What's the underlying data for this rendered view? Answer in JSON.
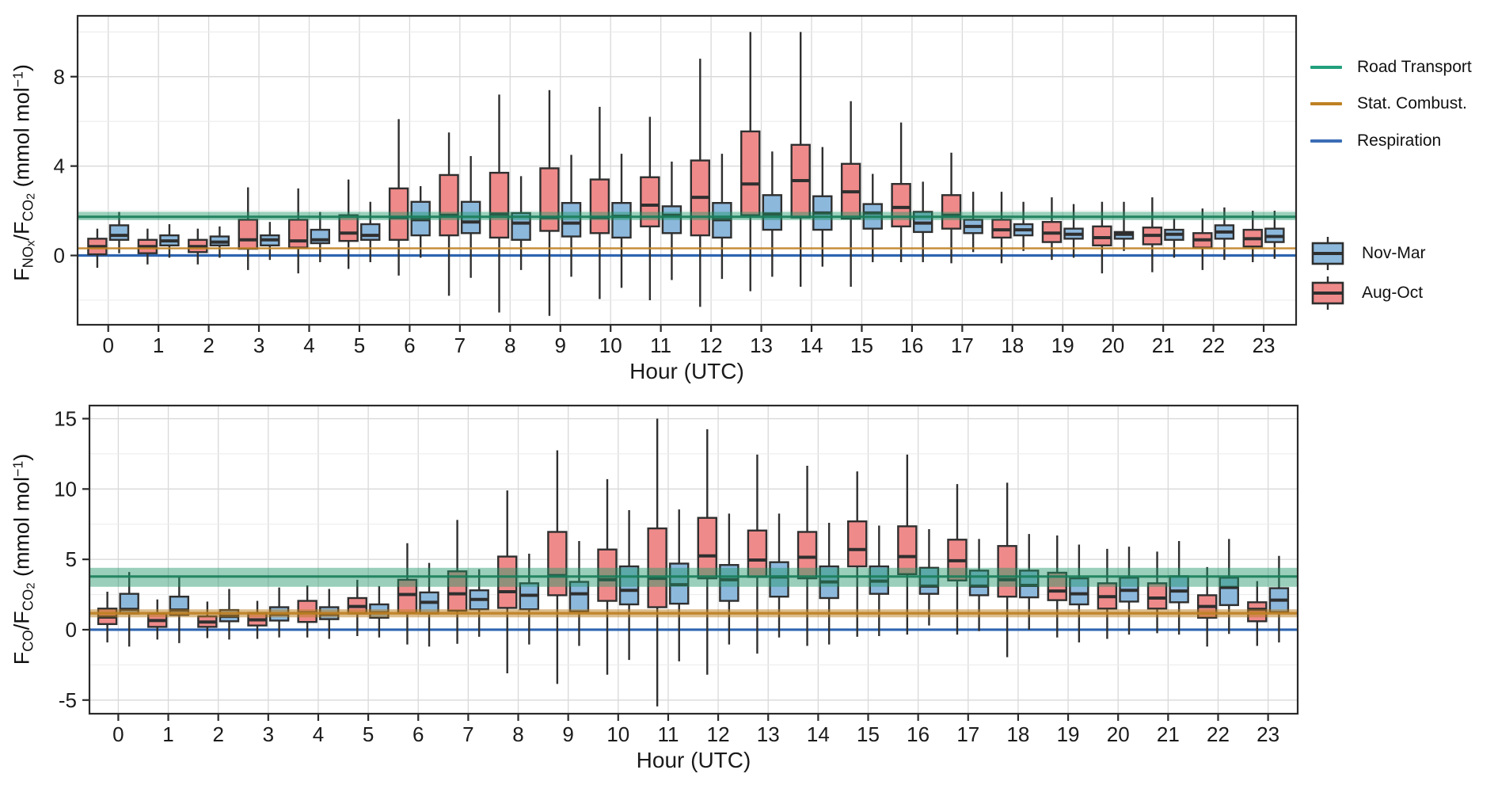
{
  "figure": {
    "background": "#ffffff"
  },
  "colors": {
    "aug_oct_fill": "#ef8a8a",
    "nov_mar_fill": "#8cb8dc",
    "box_stroke": "#2f2f2f",
    "road_line": "#22a07c",
    "road_band_fill": "rgba(30,150,105,0.45)",
    "road_center_line": "rgba(24,125,90,0.9)",
    "stat_line": "#bf8122",
    "stat_band_fill": "rgba(185,125,30,0.5)",
    "respiration_line": "#2e64b0",
    "grid_major": "#d9d9d9",
    "grid_minor": "#ececec",
    "panel_border": "#2a2a2a",
    "text": "#1a1a1a"
  },
  "legend": {
    "lines": [
      {
        "label": "Road Transport",
        "color": "#22a07c"
      },
      {
        "label": "Stat. Combust.",
        "color": "#bf8122"
      },
      {
        "label": "Respiration",
        "color": "#3a6db5"
      }
    ],
    "boxes": [
      {
        "label": "Nov-Mar",
        "fill": "#8cb8dc"
      },
      {
        "label": "Aug-Oct",
        "fill": "#ef8a8a"
      }
    ]
  },
  "chart_data": [
    {
      "id": "nox-co2",
      "type": "boxplot",
      "xlabel": "Hour (UTC)",
      "ylabel": "F_NOx / F_CO2 (mmol mol-1)",
      "ylabel_parts": [
        {
          "t": "F",
          "lv": "n"
        },
        {
          "t": "NO",
          "lv": "s"
        },
        {
          "t": "x",
          "lv": "ss"
        },
        {
          "t": "/",
          "lv": "n"
        },
        {
          "t": "F",
          "lv": "n"
        },
        {
          "t": "CO",
          "lv": "s"
        },
        {
          "t": "2",
          "lv": "ss"
        },
        {
          "t": " (mmol mol",
          "lv": "n"
        },
        {
          "t": "−1",
          "lv": "sup"
        },
        {
          "t": ")",
          "lv": "n"
        }
      ],
      "ylim": [
        -3.1,
        10.72
      ],
      "yticks": [
        0,
        4,
        8
      ],
      "yticks_minor": [
        -2,
        2,
        6,
        10
      ],
      "x_categories": [
        "0",
        "1",
        "2",
        "3",
        "4",
        "5",
        "6",
        "7",
        "8",
        "9",
        "10",
        "11",
        "12",
        "13",
        "14",
        "15",
        "16",
        "17",
        "18",
        "19",
        "20",
        "21",
        "22",
        "23"
      ],
      "reference": {
        "road_transport": {
          "band": [
            1.58,
            1.95
          ],
          "line": 1.73
        },
        "stat_combust": {
          "band": null,
          "line": 0.32
        },
        "respiration": {
          "line": 0
        }
      },
      "series_order": [
        "aug_oct",
        "nov_mar"
      ],
      "boxes": {
        "aug_oct": [
          [
            -0.55,
            0.05,
            0.4,
            0.75,
            1.2
          ],
          [
            -0.4,
            0.1,
            0.4,
            0.7,
            1.2
          ],
          [
            -0.4,
            0.15,
            0.4,
            0.7,
            1.2
          ],
          [
            -0.65,
            0.3,
            0.7,
            1.6,
            3.05
          ],
          [
            -0.8,
            0.35,
            0.65,
            1.6,
            3.0
          ],
          [
            -0.6,
            0.65,
            1.0,
            1.8,
            3.4
          ],
          [
            -0.9,
            0.7,
            1.7,
            3.0,
            6.1
          ],
          [
            -1.8,
            0.9,
            1.8,
            3.6,
            5.5
          ],
          [
            -2.55,
            0.8,
            1.85,
            3.7,
            7.2
          ],
          [
            -2.7,
            1.1,
            1.7,
            3.9,
            7.4
          ],
          [
            -1.95,
            1.0,
            1.7,
            3.4,
            6.65
          ],
          [
            -2.0,
            1.3,
            2.25,
            3.5,
            6.2
          ],
          [
            -2.3,
            0.9,
            2.6,
            4.25,
            8.8
          ],
          [
            -1.6,
            1.8,
            3.2,
            5.55,
            10.0
          ],
          [
            -1.4,
            1.7,
            3.35,
            4.95,
            10.0
          ],
          [
            -1.4,
            1.65,
            2.85,
            4.1,
            6.9
          ],
          [
            -0.3,
            1.3,
            2.15,
            3.2,
            5.95
          ],
          [
            -0.35,
            1.2,
            1.8,
            2.7,
            4.6
          ],
          [
            -0.35,
            0.8,
            1.15,
            1.6,
            2.85
          ],
          [
            -0.2,
            0.6,
            1.0,
            1.5,
            2.6
          ],
          [
            -0.8,
            0.45,
            0.8,
            1.3,
            2.4
          ],
          [
            -0.75,
            0.5,
            0.9,
            1.25,
            2.6
          ],
          [
            -0.65,
            0.35,
            0.7,
            1.0,
            2.1
          ],
          [
            -0.3,
            0.4,
            0.75,
            1.15,
            2.0
          ]
        ],
        "nov_mar": [
          [
            0.1,
            0.7,
            0.9,
            1.35,
            1.95
          ],
          [
            -0.1,
            0.45,
            0.65,
            0.9,
            1.4
          ],
          [
            -0.1,
            0.45,
            0.6,
            0.85,
            1.3
          ],
          [
            -0.2,
            0.45,
            0.7,
            0.9,
            1.5
          ],
          [
            -0.3,
            0.55,
            0.7,
            1.15,
            1.95
          ],
          [
            -0.3,
            0.7,
            0.9,
            1.4,
            2.4
          ],
          [
            -0.1,
            0.9,
            1.6,
            2.4,
            3.1
          ],
          [
            -1.0,
            1.0,
            1.5,
            2.4,
            4.45
          ],
          [
            -0.65,
            0.7,
            1.45,
            1.9,
            3.55
          ],
          [
            -0.95,
            0.85,
            1.45,
            2.35,
            4.5
          ],
          [
            -1.45,
            0.8,
            1.75,
            2.35,
            4.55
          ],
          [
            -1.1,
            1.0,
            1.8,
            2.2,
            4.2
          ],
          [
            -1.05,
            0.8,
            1.6,
            2.35,
            4.55
          ],
          [
            -0.95,
            1.15,
            1.85,
            2.7,
            4.65
          ],
          [
            -0.5,
            1.15,
            1.9,
            2.65,
            4.85
          ],
          [
            -0.3,
            1.2,
            1.9,
            2.3,
            3.65
          ],
          [
            -0.3,
            1.05,
            1.45,
            1.95,
            3.3
          ],
          [
            0.15,
            1.0,
            1.3,
            1.6,
            2.85
          ],
          [
            0.2,
            0.9,
            1.15,
            1.4,
            2.4
          ],
          [
            -0.1,
            0.75,
            0.95,
            1.2,
            2.3
          ],
          [
            0.2,
            0.75,
            0.95,
            1.05,
            2.4
          ],
          [
            -0.1,
            0.7,
            0.95,
            1.15,
            1.65
          ],
          [
            -0.2,
            0.75,
            1.05,
            1.35,
            2.15
          ],
          [
            -0.15,
            0.6,
            0.85,
            1.2,
            2.0
          ]
        ]
      }
    },
    {
      "id": "co-co2",
      "type": "boxplot",
      "xlabel": "Hour (UTC)",
      "ylabel": "F_CO / F_CO2 (mmol mol-1)",
      "ylabel_parts": [
        {
          "t": "F",
          "lv": "n"
        },
        {
          "t": "CO",
          "lv": "s"
        },
        {
          "t": "/",
          "lv": "n"
        },
        {
          "t": "F",
          "lv": "n"
        },
        {
          "t": "CO",
          "lv": "s"
        },
        {
          "t": "2",
          "lv": "ss"
        },
        {
          "t": " (mmol mol",
          "lv": "n"
        },
        {
          "t": "−1",
          "lv": "sup"
        },
        {
          "t": ")",
          "lv": "n"
        }
      ],
      "ylim": [
        -5.97,
        15.93
      ],
      "yticks": [
        -5,
        0,
        5,
        10,
        15
      ],
      "yticks_minor": [
        -2.5,
        2.5,
        7.5,
        12.5
      ],
      "x_categories": [
        "0",
        "1",
        "2",
        "3",
        "4",
        "5",
        "6",
        "7",
        "8",
        "9",
        "10",
        "11",
        "12",
        "13",
        "14",
        "15",
        "16",
        "17",
        "18",
        "19",
        "20",
        "21",
        "22",
        "23"
      ],
      "reference": {
        "road_transport": {
          "band": [
            3.05,
            4.4
          ],
          "line": 3.78
        },
        "stat_combust": {
          "band": [
            0.88,
            1.45
          ],
          "line": 1.17
        },
        "respiration": {
          "line": 0
        }
      },
      "series_order": [
        "aug_oct",
        "nov_mar"
      ],
      "boxes": {
        "aug_oct": [
          [
            -0.9,
            0.4,
            0.9,
            1.5,
            2.7
          ],
          [
            -0.7,
            0.2,
            0.65,
            1.15,
            2.15
          ],
          [
            -0.6,
            0.2,
            0.55,
            0.95,
            2.0
          ],
          [
            -0.65,
            0.3,
            0.7,
            1.2,
            2.05
          ],
          [
            -0.55,
            0.55,
            1.2,
            2.05,
            3.15
          ],
          [
            -0.45,
            1.15,
            1.65,
            2.25,
            3.55
          ],
          [
            -1.05,
            1.2,
            2.5,
            3.55,
            6.15
          ],
          [
            -1.0,
            1.35,
            2.55,
            4.15,
            7.8
          ],
          [
            -3.1,
            1.55,
            2.7,
            5.2,
            9.9
          ],
          [
            -3.85,
            2.45,
            3.85,
            6.95,
            12.75
          ],
          [
            -3.2,
            2.05,
            3.55,
            5.7,
            10.7
          ],
          [
            -5.45,
            1.6,
            3.65,
            7.2,
            15.0
          ],
          [
            -3.2,
            3.65,
            5.25,
            7.95,
            14.25
          ],
          [
            -1.7,
            3.75,
            4.95,
            7.05,
            12.45
          ],
          [
            -1.15,
            3.65,
            5.15,
            6.95,
            11.65
          ],
          [
            -0.5,
            4.5,
            5.7,
            7.7,
            11.25
          ],
          [
            -0.35,
            3.95,
            5.2,
            7.35,
            12.45
          ],
          [
            -0.35,
            3.5,
            4.9,
            6.4,
            10.35
          ],
          [
            -1.95,
            2.35,
            3.55,
            5.95,
            10.45
          ],
          [
            -0.55,
            2.1,
            2.75,
            4.05,
            6.7
          ],
          [
            -0.65,
            1.5,
            2.35,
            3.3,
            5.75
          ],
          [
            -0.25,
            1.5,
            2.25,
            3.3,
            5.55
          ],
          [
            -1.2,
            0.85,
            1.65,
            2.45,
            4.45
          ],
          [
            -1.15,
            0.6,
            1.45,
            1.95,
            3.45
          ]
        ],
        "nov_mar": [
          [
            -1.2,
            1.15,
            1.45,
            2.55,
            4.1
          ],
          [
            -0.95,
            1.05,
            1.4,
            2.35,
            3.75
          ],
          [
            -0.7,
            0.6,
            0.95,
            1.4,
            2.9
          ],
          [
            -0.55,
            0.65,
            1.1,
            1.6,
            3.0
          ],
          [
            -0.65,
            0.75,
            1.1,
            1.6,
            2.9
          ],
          [
            -0.55,
            0.85,
            1.2,
            1.8,
            3.1
          ],
          [
            -1.2,
            1.15,
            1.95,
            2.65,
            4.75
          ],
          [
            -0.5,
            1.45,
            2.15,
            2.8,
            4.3
          ],
          [
            -1.05,
            1.45,
            2.45,
            3.3,
            5.4
          ],
          [
            -1.15,
            1.3,
            2.55,
            3.4,
            6.3
          ],
          [
            -2.15,
            1.8,
            2.8,
            4.5,
            8.5
          ],
          [
            -2.25,
            1.85,
            3.2,
            4.7,
            8.55
          ],
          [
            -1.05,
            2.05,
            3.55,
            4.6,
            8.25
          ],
          [
            -0.55,
            2.35,
            3.75,
            4.8,
            8.25
          ],
          [
            -1.05,
            2.25,
            3.4,
            4.5,
            7.6
          ],
          [
            -0.45,
            2.55,
            3.45,
            4.5,
            7.4
          ],
          [
            0.3,
            2.55,
            3.1,
            4.4,
            7.15
          ],
          [
            -0.1,
            2.45,
            3.1,
            4.2,
            6.45
          ],
          [
            0.0,
            2.3,
            3.15,
            4.2,
            6.8
          ],
          [
            -0.9,
            1.8,
            2.55,
            3.65,
            6.05
          ],
          [
            -0.35,
            2.0,
            2.8,
            3.7,
            5.9
          ],
          [
            -0.35,
            1.95,
            2.75,
            3.8,
            6.3
          ],
          [
            -0.3,
            1.75,
            3.0,
            3.7,
            6.45
          ],
          [
            -0.9,
            1.25,
            2.1,
            2.95,
            5.25
          ]
        ]
      }
    }
  ]
}
